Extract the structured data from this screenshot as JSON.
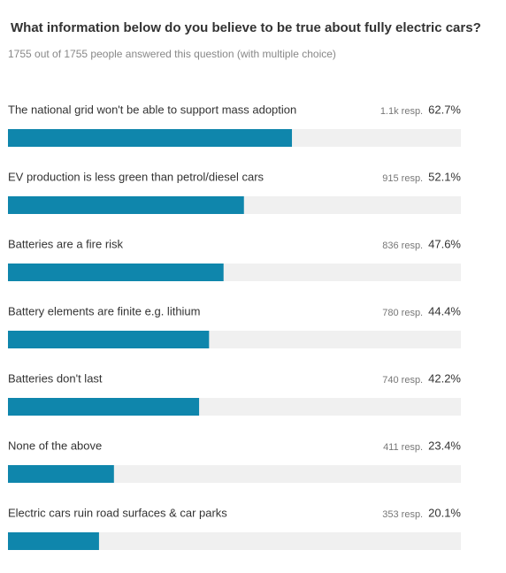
{
  "chart_data": {
    "type": "bar",
    "title": "What information below do you believe to be true about fully electric cars?",
    "subtitle": "1755 out of 1755 people answered this question (with multiple choice)",
    "categories": [
      "The national grid won't be able to support mass adoption",
      "EV production is less green than petrol/diesel cars",
      "Batteries are a fire risk",
      "Battery elements are finite e.g. lithium",
      "Batteries don't last",
      "None of the above",
      "Electric cars ruin road surfaces & car parks"
    ],
    "values": [
      62.7,
      52.1,
      47.6,
      44.4,
      42.2,
      23.4,
      20.1
    ],
    "value_labels": [
      "62.7%",
      "52.1%",
      "47.6%",
      "44.4%",
      "42.2%",
      "23.4%",
      "20.1%"
    ],
    "response_labels": [
      "1.1k resp.",
      "915 resp.",
      "836 resp.",
      "780 resp.",
      "740 resp.",
      "411 resp.",
      "353 resp."
    ],
    "color": "#0f86ac",
    "xlim": [
      0,
      100
    ]
  }
}
